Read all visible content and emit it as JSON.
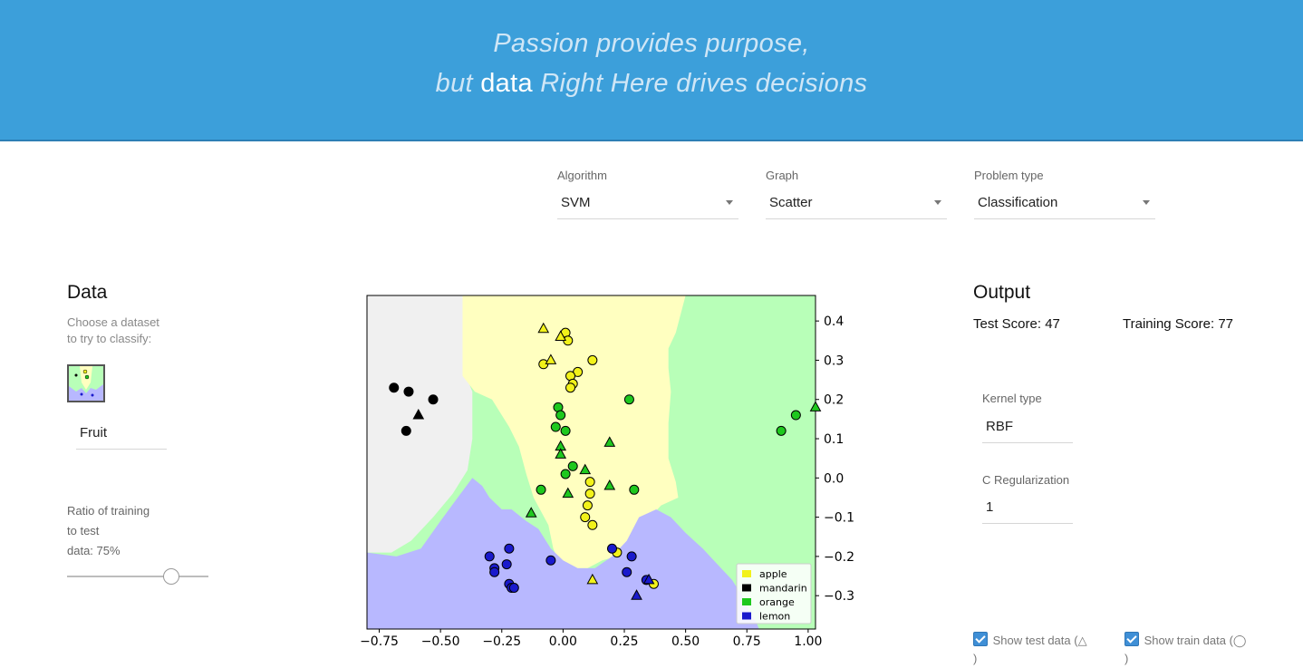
{
  "header": {
    "line1": "Passion provides purpose,",
    "line2_pre": "but",
    "line2_highlight": "data",
    "line2_post": "Right Here drives decisions"
  },
  "selectors": {
    "algorithm": {
      "label": "Algorithm",
      "value": "SVM"
    },
    "graph": {
      "label": "Graph",
      "value": "Scatter"
    },
    "problem": {
      "label": "Problem type",
      "value": "Classification"
    }
  },
  "data_panel": {
    "title": "Data",
    "choose_text": "Choose a dataset",
    "choose_text2": "to try to classify:",
    "dataset_value": "Fruit",
    "ratio_line1": "Ratio of training",
    "ratio_line2": "to test",
    "ratio_line3": "data:  75%",
    "ratio_value": 0.75
  },
  "output": {
    "title": "Output",
    "test_score": "Test Score: 47",
    "train_score": "Training Score: 77",
    "kernel_label": "Kernel type",
    "kernel_value": "RBF",
    "c_label": "C Regularization",
    "c_value": "1",
    "show_test": "Show test data (△",
    "show_test_close": ")",
    "show_train": "Show train data (◯",
    "show_train_close": ")"
  },
  "colors": {
    "apple": "#f2f21a",
    "mandarin": "#000000",
    "orange": "#1ec81e",
    "lemon": "#1a1acc",
    "bg_apple": "#ffffc0",
    "bg_mandarin": "#f0f0f0",
    "bg_orange": "#b8ffb8",
    "bg_lemon": "#b8b8ff"
  },
  "chart_data": {
    "type": "scatter",
    "xlim": [
      -0.8,
      1.03
    ],
    "ylim": [
      -0.385,
      0.465
    ],
    "xticks": [
      "−0.75",
      "−0.50",
      "−0.25",
      "0.00",
      "0.25",
      "0.50",
      "0.75",
      "1.00"
    ],
    "xtick_values": [
      -0.75,
      -0.5,
      -0.25,
      0.0,
      0.25,
      0.5,
      0.75,
      1.0
    ],
    "yticks": [
      "0.4",
      "0.3",
      "0.2",
      "0.1",
      "0.0",
      "−0.1",
      "−0.2",
      "−0.3"
    ],
    "ytick_values": [
      0.4,
      0.3,
      0.2,
      0.1,
      0.0,
      -0.1,
      -0.2,
      -0.3
    ],
    "legend": [
      "apple",
      "mandarin",
      "orange",
      "lemon"
    ],
    "legend_position": "lower-right",
    "series": [
      {
        "name": "apple",
        "train": [
          [
            0.01,
            0.37
          ],
          [
            0.02,
            0.35
          ],
          [
            -0.08,
            0.29
          ],
          [
            0.12,
            0.3
          ],
          [
            0.06,
            0.27
          ],
          [
            0.03,
            0.26
          ],
          [
            0.04,
            0.24
          ],
          [
            0.03,
            0.23
          ],
          [
            0.11,
            -0.01
          ],
          [
            0.11,
            -0.04
          ],
          [
            0.1,
            -0.07
          ],
          [
            0.09,
            -0.1
          ],
          [
            0.12,
            -0.12
          ],
          [
            0.22,
            -0.19
          ],
          [
            0.37,
            -0.27
          ]
        ],
        "test": [
          [
            -0.08,
            0.38
          ],
          [
            -0.01,
            0.36
          ],
          [
            -0.05,
            0.3
          ],
          [
            0.12,
            -0.26
          ]
        ]
      },
      {
        "name": "mandarin",
        "train": [
          [
            -0.69,
            0.23
          ],
          [
            -0.63,
            0.22
          ],
          [
            -0.53,
            0.2
          ],
          [
            -0.64,
            0.12
          ]
        ],
        "test": [
          [
            -0.59,
            0.16
          ]
        ]
      },
      {
        "name": "orange",
        "train": [
          [
            0.27,
            0.2
          ],
          [
            -0.02,
            0.18
          ],
          [
            -0.01,
            0.16
          ],
          [
            -0.03,
            0.13
          ],
          [
            0.01,
            0.12
          ],
          [
            0.04,
            0.03
          ],
          [
            0.01,
            0.01
          ],
          [
            -0.09,
            -0.03
          ],
          [
            0.29,
            -0.03
          ],
          [
            0.89,
            0.12
          ],
          [
            0.95,
            0.16
          ]
        ],
        "test": [
          [
            0.19,
            0.09
          ],
          [
            -0.01,
            0.08
          ],
          [
            -0.01,
            0.06
          ],
          [
            0.09,
            0.02
          ],
          [
            0.02,
            -0.04
          ],
          [
            0.19,
            -0.02
          ],
          [
            -0.13,
            -0.09
          ],
          [
            1.03,
            0.18
          ]
        ]
      },
      {
        "name": "lemon",
        "train": [
          [
            -0.3,
            -0.2
          ],
          [
            -0.22,
            -0.18
          ],
          [
            -0.28,
            -0.23
          ],
          [
            -0.23,
            -0.22
          ],
          [
            -0.28,
            -0.24
          ],
          [
            -0.22,
            -0.27
          ],
          [
            -0.21,
            -0.28
          ],
          [
            -0.2,
            -0.28
          ],
          [
            -0.05,
            -0.21
          ],
          [
            0.2,
            -0.18
          ],
          [
            0.28,
            -0.2
          ],
          [
            0.26,
            -0.24
          ],
          [
            0.34,
            -0.26
          ]
        ],
        "test": [
          [
            0.35,
            -0.26
          ],
          [
            0.3,
            -0.3
          ]
        ]
      }
    ]
  }
}
